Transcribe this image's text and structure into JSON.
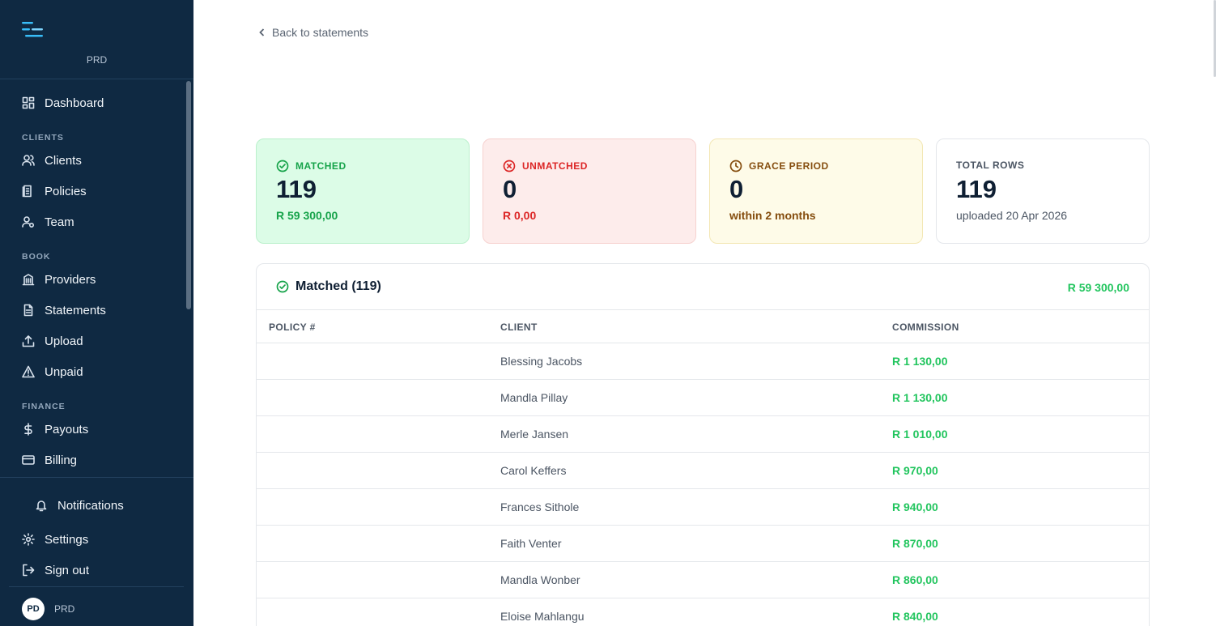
{
  "sidebar": {
    "org": "PRD",
    "items": {
      "dashboard": "Dashboard",
      "clients": "Clients",
      "policies": "Policies",
      "team": "Team",
      "providers": "Providers",
      "statements": "Statements",
      "upload": "Upload",
      "unpaid": "Unpaid",
      "payouts": "Payouts",
      "billing": "Billing",
      "notifications": "Notifications",
      "settings": "Settings",
      "signout": "Sign out"
    },
    "sections": {
      "clients": "CLIENTS",
      "book": "BOOK",
      "finance": "FINANCE"
    },
    "user": {
      "initials": "PD",
      "name": "PRD"
    }
  },
  "back_link": "Back to statements",
  "cards": {
    "matched": {
      "label": "MATCHED",
      "count": "119",
      "sub": "R 59 300,00"
    },
    "unmatched": {
      "label": "UNMATCHED",
      "count": "0",
      "sub": "R 0,00"
    },
    "grace": {
      "label": "GRACE PERIOD",
      "count": "0",
      "sub": "within 2 months"
    },
    "total": {
      "label": "TOTAL ROWS",
      "count": "119",
      "sub": "uploaded 20 Apr 2026"
    }
  },
  "table": {
    "title": "Matched (119)",
    "total": "R 59 300,00",
    "columns": {
      "policy": "POLICY #",
      "client": "CLIENT",
      "commission": "COMMISSION"
    },
    "rows": [
      {
        "policy": "",
        "client": "Blessing Jacobs",
        "commission": "R 1 130,00"
      },
      {
        "policy": "",
        "client": "Mandla Pillay",
        "commission": "R 1 130,00"
      },
      {
        "policy": "",
        "client": "Merle Jansen",
        "commission": "R 1 010,00"
      },
      {
        "policy": "",
        "client": "Carol Keffers",
        "commission": "R 970,00"
      },
      {
        "policy": "",
        "client": "Frances Sithole",
        "commission": "R 940,00"
      },
      {
        "policy": "",
        "client": "Faith Venter",
        "commission": "R 870,00"
      },
      {
        "policy": "",
        "client": "Mandla Wonber",
        "commission": "R 860,00"
      },
      {
        "policy": "",
        "client": "Eloise Mahlangu",
        "commission": "R 840,00"
      }
    ]
  }
}
